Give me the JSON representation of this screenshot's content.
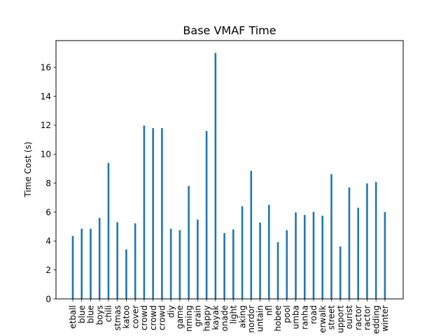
{
  "chart_data": {
    "type": "bar",
    "title": "Base VMAF Time",
    "xlabel": "",
    "ylabel": "Time Cost (s)",
    "ylim": [
      0,
      17.85
    ],
    "yticks": [
      0,
      2,
      4,
      6,
      8,
      10,
      12,
      14,
      16
    ],
    "grid": false,
    "bar_color": "#1f77b4",
    "categories": [
      "etball",
      "blue",
      "blue",
      "boys",
      "chili",
      "stmas",
      "katoo",
      "cover",
      "crowd",
      "crowd",
      "crowd",
      "diy",
      "game",
      "nming",
      "grain",
      "happy",
      "kayak",
      "onade",
      "light",
      "aking",
      "nordor",
      "untain",
      "nfl",
      "hobee",
      "pool",
      "umba",
      "ranha",
      "road",
      "erwalk",
      "street",
      "upport",
      "ourist",
      "ractor",
      "ractor",
      "edding",
      "winter"
    ],
    "values": [
      4.35,
      4.85,
      4.85,
      5.6,
      9.4,
      5.3,
      3.42,
      5.22,
      11.98,
      11.8,
      11.8,
      4.85,
      4.75,
      7.8,
      5.48,
      11.6,
      17.0,
      4.55,
      4.8,
      6.4,
      8.85,
      5.28,
      6.5,
      3.92,
      4.75,
      5.98,
      5.8,
      6.02,
      5.75,
      8.62,
      3.62,
      7.7,
      6.3,
      7.98,
      8.08,
      6.0
    ]
  }
}
